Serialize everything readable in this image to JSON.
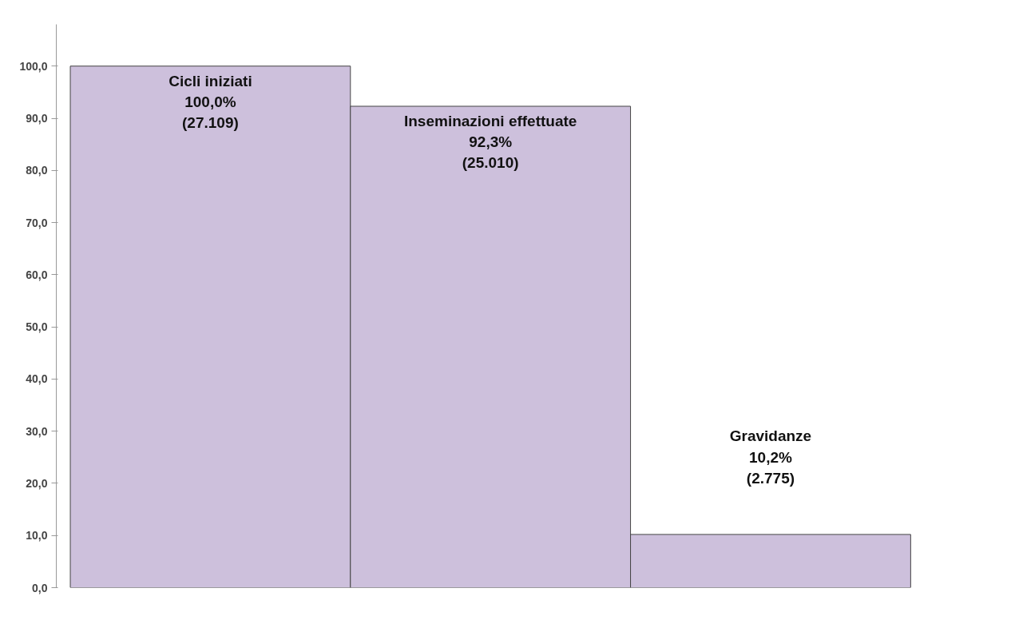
{
  "chart_data": {
    "type": "bar",
    "categories": [
      "Cicli iniziati",
      "Inseminazioni effettuate",
      "Gravidanze"
    ],
    "values": [
      100.0,
      92.3,
      10.2
    ],
    "value_labels": [
      "100,0%\n(27.109)",
      "92,3%\n(25.010)",
      "10,2%\n(2.775)"
    ],
    "color": "#cdc0dc",
    "ylim": [
      0,
      108
    ],
    "yticks": [
      {
        "value": 0,
        "label": "0,0"
      },
      {
        "value": 10,
        "label": "10,0"
      },
      {
        "value": 20,
        "label": "20,0"
      },
      {
        "value": 30,
        "label": "30,0"
      },
      {
        "value": 40,
        "label": "40,0"
      },
      {
        "value": 50,
        "label": "50,0"
      },
      {
        "value": 60,
        "label": "60,0"
      },
      {
        "value": 70,
        "label": "70,0"
      },
      {
        "value": 80,
        "label": "80,0"
      },
      {
        "value": 90,
        "label": "90,0"
      },
      {
        "value": 100,
        "label": "100,0"
      }
    ]
  }
}
